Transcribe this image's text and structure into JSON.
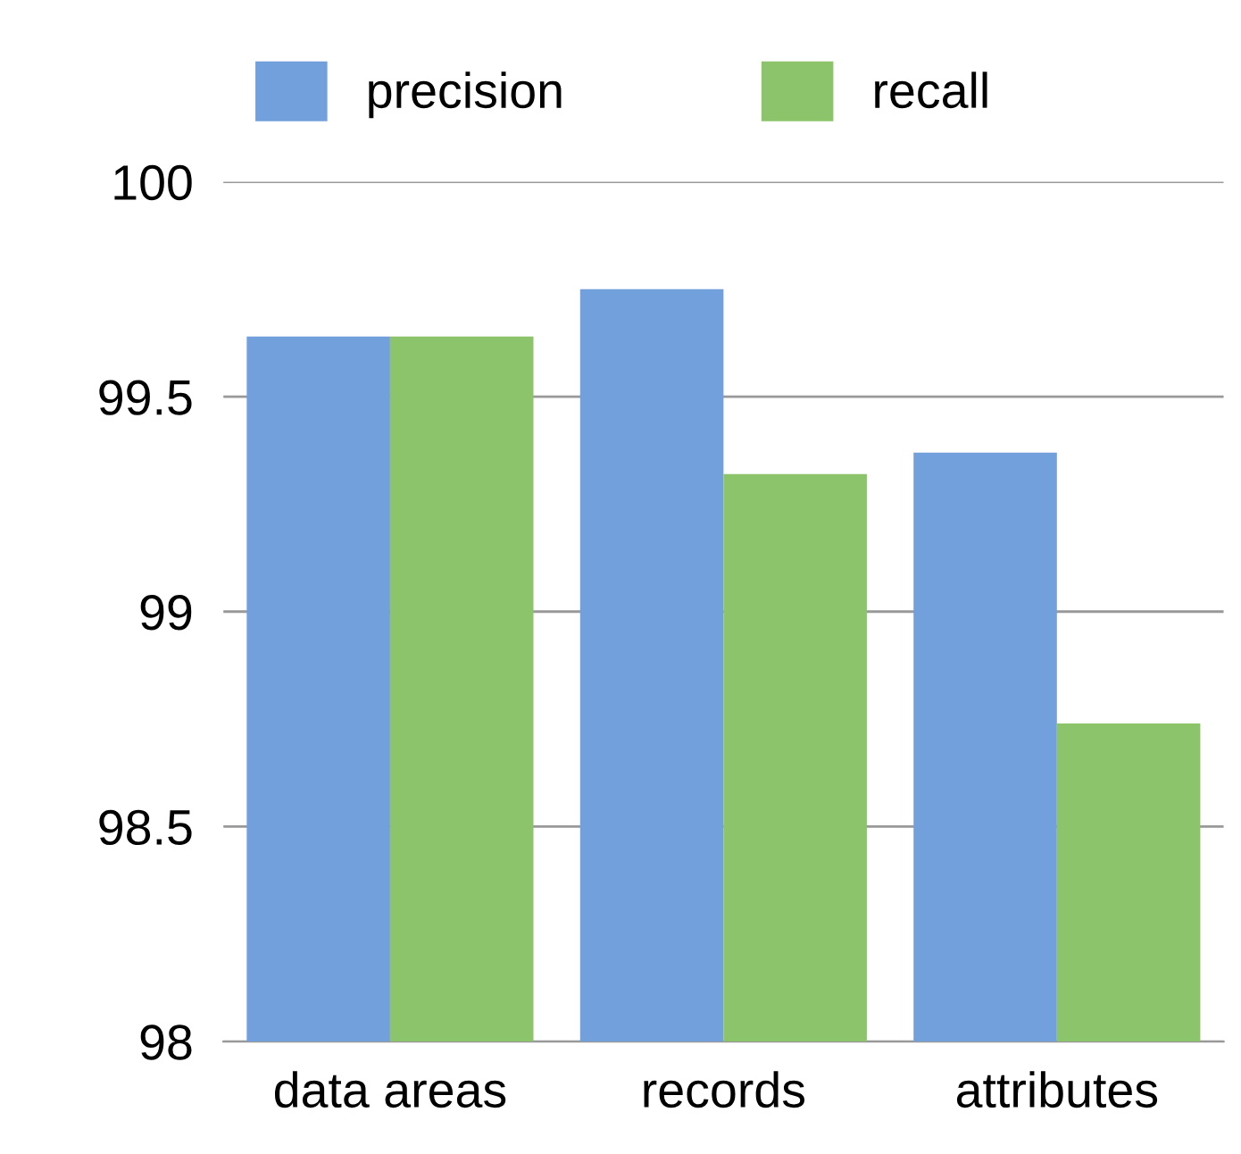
{
  "chart_data": {
    "type": "bar",
    "categories": [
      "data areas",
      "records",
      "attributes"
    ],
    "series": [
      {
        "name": "precision",
        "color": "#72a0dc",
        "values": [
          99.64,
          99.75,
          99.37
        ]
      },
      {
        "name": "recall",
        "color": "#8cc46c",
        "values": [
          99.64,
          99.32,
          98.74
        ]
      }
    ],
    "ylim": [
      98,
      100
    ],
    "yticks": [
      98,
      98.5,
      99,
      99.5,
      100
    ],
    "grid": "y",
    "legend": "top"
  }
}
